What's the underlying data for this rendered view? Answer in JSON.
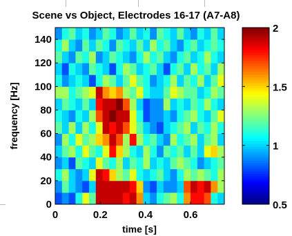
{
  "chart_data": [
    {
      "type": "heatmap",
      "title": "Scene vs Object, Electrodes 16-17 (A7-A8)",
      "xlabel": "time [s]",
      "ylabel": "frequency [Hz]",
      "xlim": [
        0,
        0.75
      ],
      "ylim": [
        0,
        150
      ],
      "xticks": [
        0,
        0.2,
        0.4,
        0.6
      ],
      "xticklabels": [
        "0",
        "0.2",
        "0.4",
        "0.6"
      ],
      "yticks": [
        0,
        20,
        40,
        60,
        80,
        100,
        120,
        140
      ],
      "yticklabels": [
        "0",
        "20",
        "40",
        "60",
        "80",
        "100",
        "120",
        "140"
      ],
      "x": [
        0.015,
        0.045,
        0.075,
        0.105,
        0.135,
        0.165,
        0.195,
        0.225,
        0.255,
        0.285,
        0.315,
        0.345,
        0.375,
        0.405,
        0.435,
        0.465,
        0.495,
        0.525,
        0.555,
        0.585,
        0.615,
        0.645,
        0.675,
        0.705,
        0.735
      ],
      "y": [
        5,
        15,
        25,
        35,
        45,
        55,
        65,
        75,
        85,
        95,
        105,
        115,
        125,
        135,
        145
      ],
      "values_row_order": "low-frequency-first",
      "values": [
        [
          0.8,
          0.9,
          0.8,
          1.1,
          1.4,
          1.2,
          1.9,
          1.9,
          1.9,
          1.9,
          1.8,
          1.9,
          1.6,
          1.0,
          0.9,
          1.1,
          1.2,
          1.3,
          1.1,
          1.6,
          1.8,
          1.8,
          1.7,
          1.1,
          1.0
        ],
        [
          0.9,
          1.2,
          1.0,
          0.9,
          0.8,
          1.0,
          1.9,
          1.9,
          1.9,
          1.9,
          1.9,
          1.8,
          1.5,
          0.9,
          0.8,
          1.0,
          0.9,
          0.9,
          1.0,
          1.7,
          1.9,
          1.8,
          1.9,
          1.6,
          1.3
        ],
        [
          1.1,
          1.3,
          1.0,
          0.9,
          1.0,
          1.4,
          1.9,
          1.8,
          1.5,
          1.3,
          1.2,
          1.4,
          1.1,
          1.0,
          1.1,
          1.2,
          1.0,
          0.9,
          1.1,
          1.3,
          1.2,
          1.3,
          1.2,
          1.1,
          1.3
        ],
        [
          0.9,
          1.0,
          0.8,
          1.2,
          1.1,
          1.0,
          1.4,
          1.2,
          1.1,
          1.3,
          1.0,
          1.2,
          1.1,
          1.3,
          1.0,
          1.1,
          1.0,
          1.2,
          1.3,
          1.2,
          1.1,
          0.9,
          1.0,
          1.1,
          1.2
        ],
        [
          1.0,
          1.2,
          1.3,
          1.1,
          1.4,
          1.2,
          1.1,
          1.4,
          1.8,
          1.5,
          1.3,
          1.1,
          1.0,
          1.3,
          1.1,
          0.9,
          1.2,
          1.1,
          1.2,
          1.0,
          1.2,
          1.0,
          1.4,
          1.5,
          1.3
        ],
        [
          0.9,
          1.3,
          1.1,
          1.4,
          1.2,
          1.3,
          1.5,
          1.6,
          1.9,
          1.7,
          1.3,
          1.8,
          1.3,
          1.1,
          1.2,
          1.0,
          0.9,
          1.3,
          1.1,
          1.2,
          1.3,
          1.0,
          1.2,
          1.3,
          1.0
        ],
        [
          1.2,
          1.0,
          1.3,
          1.0,
          1.3,
          1.1,
          1.4,
          1.9,
          1.8,
          1.9,
          1.7,
          1.4,
          1.2,
          1.0,
          0.9,
          0.8,
          1.0,
          1.1,
          1.2,
          1.3,
          1.0,
          1.2,
          1.1,
          1.3,
          1.1
        ],
        [
          1.1,
          1.0,
          0.9,
          1.1,
          1.0,
          1.3,
          1.7,
          1.9,
          2.0,
          1.9,
          1.9,
          1.4,
          1.1,
          0.8,
          0.9,
          0.9,
          1.0,
          0.9,
          1.1,
          1.2,
          1.3,
          1.1,
          1.0,
          1.2,
          1.4
        ],
        [
          1.0,
          1.2,
          1.1,
          1.0,
          1.2,
          1.0,
          1.8,
          1.9,
          1.9,
          2.0,
          1.7,
          1.3,
          1.0,
          0.8,
          0.9,
          0.9,
          1.3,
          1.0,
          1.1,
          1.0,
          1.2,
          1.1,
          1.3,
          1.1,
          1.0
        ],
        [
          1.3,
          1.3,
          1.1,
          1.2,
          1.3,
          1.4,
          1.9,
          1.6,
          1.5,
          1.6,
          1.3,
          1.2,
          1.4,
          1.1,
          1.0,
          1.0,
          1.2,
          1.4,
          1.3,
          1.2,
          1.2,
          1.0,
          1.1,
          1.3,
          1.2
        ],
        [
          1.1,
          0.9,
          1.0,
          1.1,
          1.0,
          0.8,
          1.1,
          1.3,
          1.2,
          1.0,
          1.2,
          1.4,
          1.2,
          1.1,
          0.9,
          1.0,
          1.1,
          1.3,
          1.0,
          1.2,
          1.1,
          1.3,
          1.0,
          1.2,
          1.4
        ],
        [
          1.0,
          0.8,
          1.1,
          1.0,
          0.9,
          1.2,
          1.1,
          1.0,
          0.8,
          1.1,
          1.3,
          1.2,
          1.0,
          1.1,
          1.2,
          1.0,
          0.8,
          1.1,
          1.2,
          1.0,
          1.3,
          1.1,
          1.2,
          1.0,
          1.3
        ],
        [
          1.2,
          1.0,
          0.9,
          1.2,
          1.1,
          1.3,
          0.9,
          1.0,
          1.2,
          1.1,
          1.0,
          0.9,
          1.1,
          1.3,
          1.1,
          1.2,
          1.0,
          0.9,
          1.1,
          1.2,
          1.0,
          1.1,
          1.3,
          1.1,
          1.0
        ],
        [
          1.1,
          1.3,
          1.0,
          0.9,
          1.2,
          1.0,
          1.2,
          1.1,
          0.9,
          1.2,
          1.1,
          1.0,
          1.2,
          1.0,
          1.3,
          1.1,
          1.2,
          1.0,
          0.9,
          1.1,
          1.2,
          1.0,
          1.1,
          1.2,
          1.1
        ],
        [
          0.9,
          1.1,
          1.2,
          1.0,
          1.1,
          0.9,
          1.0,
          1.2,
          1.1,
          0.9,
          1.0,
          1.2,
          1.0,
          1.1,
          0.9,
          1.2,
          1.1,
          1.0,
          1.2,
          1.0,
          0.9,
          1.1,
          1.0,
          1.2,
          1.0
        ]
      ]
    },
    {
      "type": "colorbar",
      "colormap": "jet",
      "clim": [
        0.5,
        2
      ],
      "ticks": [
        0.5,
        1,
        1.5,
        2
      ],
      "ticklabels": [
        "0.5",
        "1",
        "1.5",
        "2"
      ]
    }
  ]
}
